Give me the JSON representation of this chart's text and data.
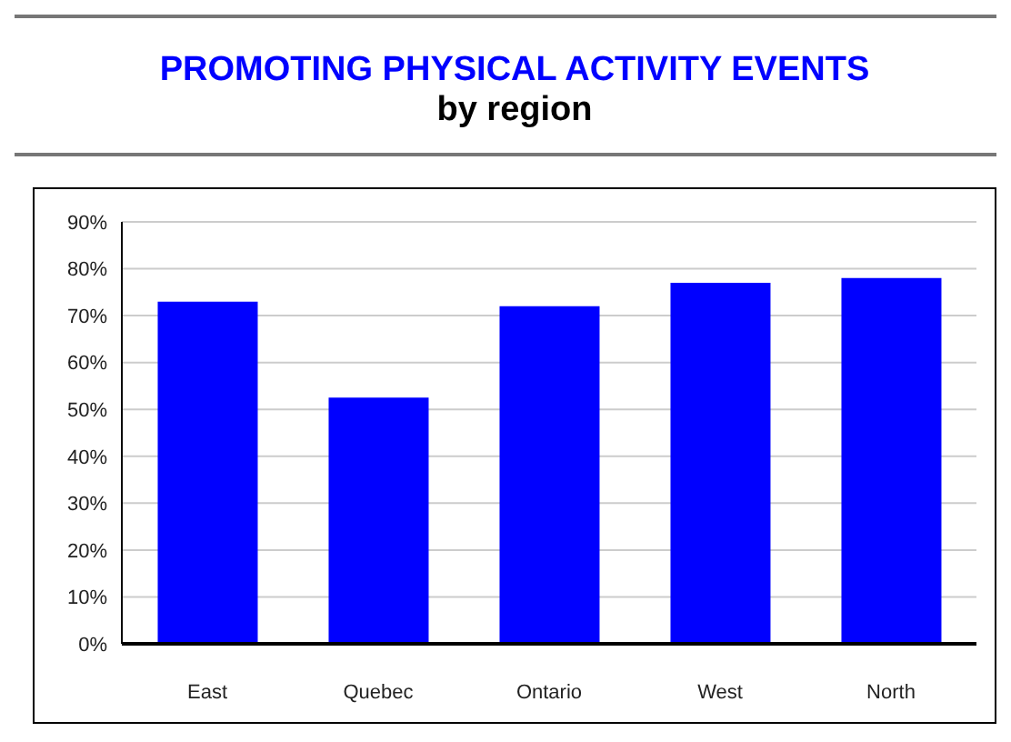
{
  "chart_data": {
    "type": "bar",
    "title": "PROMOTING PHYSICAL ACTIVITY EVENTS",
    "subtitle": "by region",
    "categories": [
      "East",
      "Quebec",
      "Ontario",
      "West",
      "North"
    ],
    "values": [
      73,
      52.5,
      72,
      77,
      78
    ],
    "color": "#0000ff",
    "ylim": [
      0,
      90
    ],
    "yticks": [
      {
        "value": 0,
        "label": "0%"
      },
      {
        "value": 10,
        "label": "10%"
      },
      {
        "value": 20,
        "label": "20%"
      },
      {
        "value": 30,
        "label": "30%"
      },
      {
        "value": 40,
        "label": "40%"
      },
      {
        "value": 50,
        "label": "50%"
      },
      {
        "value": 60,
        "label": "60%"
      },
      {
        "value": 70,
        "label": "70%"
      },
      {
        "value": 80,
        "label": "80%"
      },
      {
        "value": 90,
        "label": "90%"
      }
    ],
    "grid": "y"
  }
}
